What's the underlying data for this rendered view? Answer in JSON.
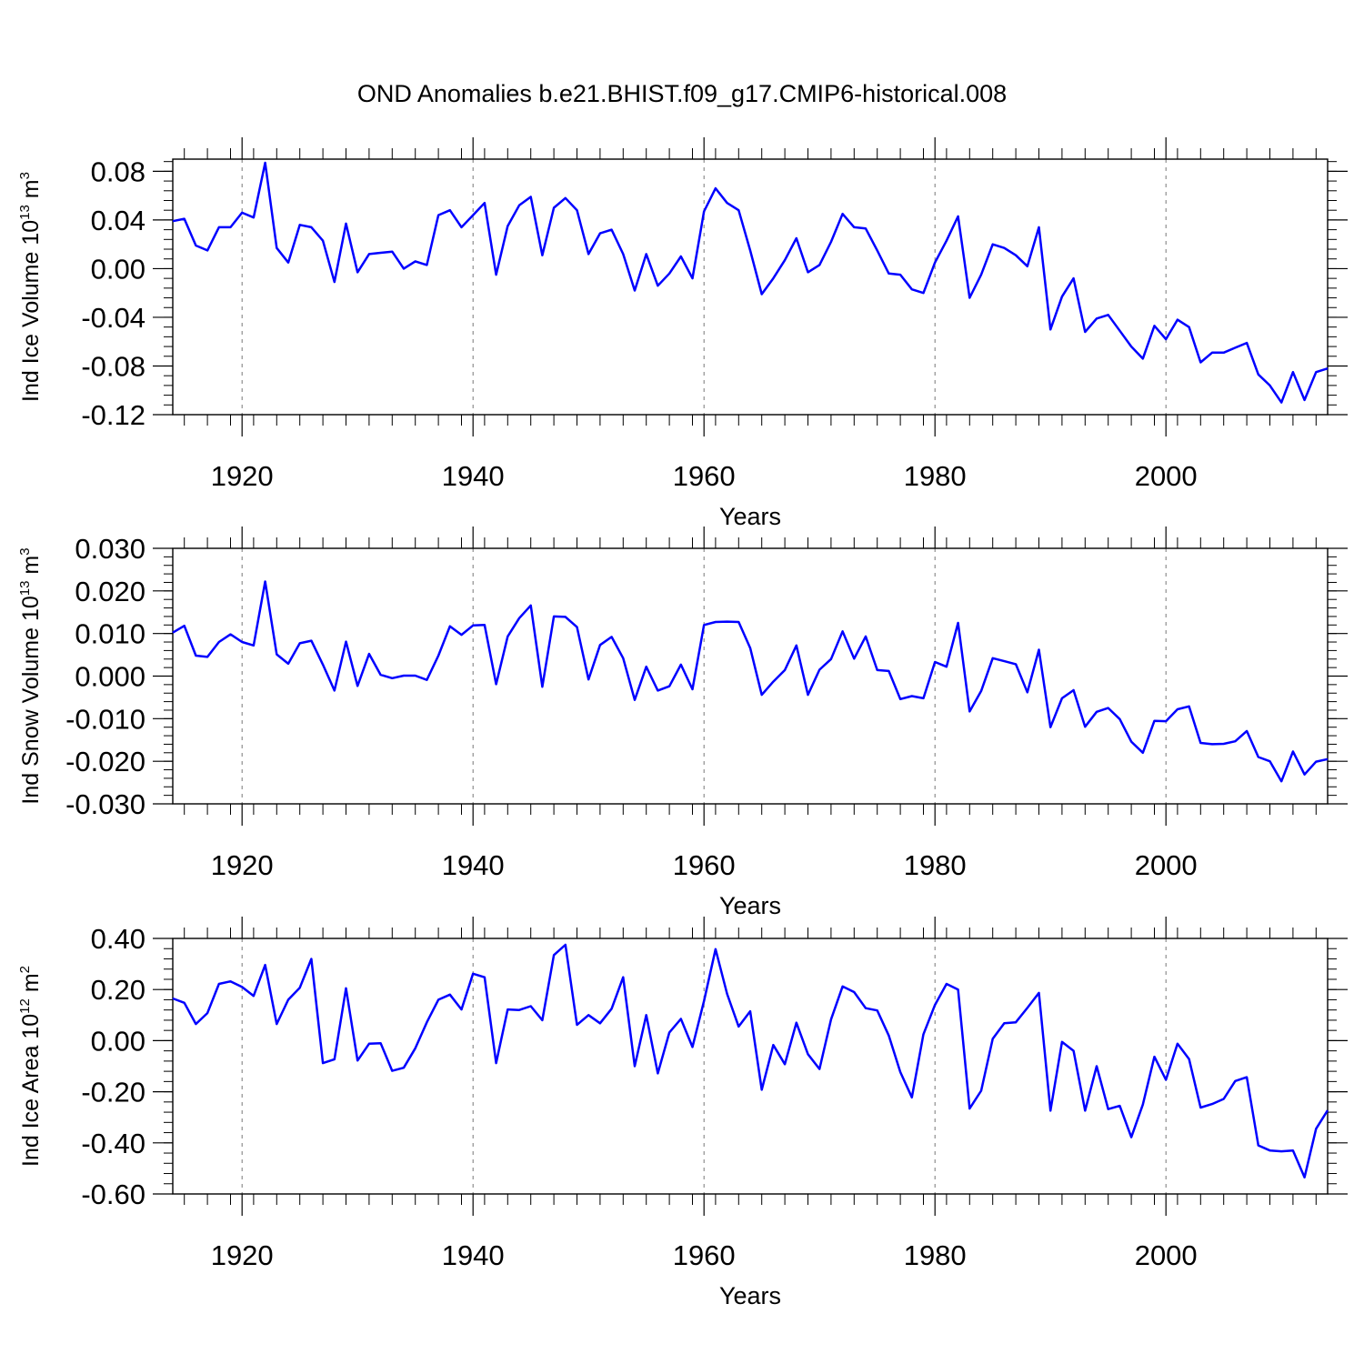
{
  "title": "OND Anomalies b.e21.BHIST.f09_g17.CMIP6-historical.008",
  "x_axis": {
    "label": "Years",
    "tick_labels": [
      "1920",
      "1940",
      "1960",
      "1980",
      "2000"
    ]
  },
  "colors": {
    "line": "#0000ff",
    "axes": "#000000",
    "grid": "#777777"
  },
  "chart_data": [
    {
      "type": "line",
      "ylabel": {
        "text": "Ind Ice Volume 10",
        "exp": "13",
        "unit": " m",
        "unit_exp": "3"
      },
      "xlim": [
        1914,
        2014
      ],
      "ylim": [
        -0.12,
        0.09
      ],
      "y_ticks": [
        0.08,
        0.04,
        0.0,
        -0.04,
        -0.08,
        -0.12
      ],
      "y_tick_labels": [
        "0.08",
        "0.04",
        "0.00",
        "-0.04",
        "-0.08",
        "-0.12"
      ],
      "x_ticks": [
        1920,
        1940,
        1960,
        1980,
        2000
      ],
      "grid": "vertical dashed at major x ticks",
      "x": [
        1914,
        1915,
        1916,
        1917,
        1918,
        1919,
        1920,
        1921,
        1922,
        1923,
        1924,
        1925,
        1926,
        1927,
        1928,
        1929,
        1930,
        1931,
        1932,
        1933,
        1934,
        1935,
        1936,
        1937,
        1938,
        1939,
        1940,
        1941,
        1942,
        1943,
        1944,
        1945,
        1946,
        1947,
        1948,
        1949,
        1950,
        1951,
        1952,
        1953,
        1954,
        1955,
        1956,
        1957,
        1958,
        1959,
        1960,
        1961,
        1962,
        1963,
        1964,
        1965,
        1966,
        1967,
        1968,
        1969,
        1970,
        1971,
        1972,
        1973,
        1974,
        1975,
        1976,
        1977,
        1978,
        1979,
        1980,
        1981,
        1982,
        1983,
        1984,
        1985,
        1986,
        1987,
        1988,
        1989,
        1990,
        1991,
        1992,
        1993,
        1994,
        1995,
        1996,
        1997,
        1998,
        1999,
        2000,
        2001,
        2002,
        2003,
        2004,
        2005,
        2006,
        2007,
        2008,
        2009,
        2010,
        2011,
        2012,
        2013,
        2014
      ],
      "values": [
        0.039,
        0.041,
        0.019,
        0.015,
        0.034,
        0.034,
        0.046,
        0.042,
        0.087,
        0.017,
        0.005,
        0.036,
        0.034,
        0.023,
        -0.011,
        0.037,
        -0.003,
        0.012,
        0.013,
        0.014,
        0.0,
        0.006,
        0.003,
        0.044,
        0.048,
        0.034,
        0.044,
        0.054,
        -0.005,
        0.035,
        0.052,
        0.059,
        0.011,
        0.05,
        0.058,
        0.048,
        0.012,
        0.029,
        0.032,
        0.012,
        -0.018,
        0.012,
        -0.014,
        -0.004,
        0.01,
        -0.008,
        0.047,
        0.066,
        0.054,
        0.048,
        0.015,
        -0.021,
        -0.008,
        0.007,
        0.025,
        -0.003,
        0.003,
        0.022,
        0.045,
        0.034,
        0.033,
        0.015,
        -0.004,
        -0.005,
        -0.017,
        -0.02,
        0.005,
        0.023,
        0.043,
        -0.024,
        -0.005,
        0.02,
        0.017,
        0.011,
        0.002,
        0.034,
        -0.05,
        -0.023,
        -0.008,
        -0.052,
        -0.041,
        -0.038,
        -0.051,
        -0.064,
        -0.074,
        -0.047,
        -0.058,
        -0.042,
        -0.048,
        -0.077,
        -0.069,
        -0.069,
        -0.065,
        -0.061,
        -0.087,
        -0.096,
        -0.11,
        -0.085,
        -0.108,
        -0.085,
        -0.082
      ]
    },
    {
      "type": "line",
      "ylabel": {
        "text": "Ind Snow Volume 10",
        "exp": "13",
        "unit": " m",
        "unit_exp": "3"
      },
      "xlim": [
        1914,
        2014
      ],
      "ylim": [
        -0.03,
        0.03
      ],
      "y_ticks": [
        0.03,
        0.02,
        0.01,
        0.0,
        -0.01,
        -0.02,
        -0.03
      ],
      "y_tick_labels": [
        "0.030",
        "0.020",
        "0.010",
        "0.000",
        "-0.010",
        "-0.020",
        "-0.030"
      ],
      "x_ticks": [
        1920,
        1940,
        1960,
        1980,
        2000
      ],
      "grid": "vertical dashed at major x ticks",
      "x": [
        1914,
        1915,
        1916,
        1917,
        1918,
        1919,
        1920,
        1921,
        1922,
        1923,
        1924,
        1925,
        1926,
        1927,
        1928,
        1929,
        1930,
        1931,
        1932,
        1933,
        1934,
        1935,
        1936,
        1937,
        1938,
        1939,
        1940,
        1941,
        1942,
        1943,
        1944,
        1945,
        1946,
        1947,
        1948,
        1949,
        1950,
        1951,
        1952,
        1953,
        1954,
        1955,
        1956,
        1957,
        1958,
        1959,
        1960,
        1961,
        1962,
        1963,
        1964,
        1965,
        1966,
        1967,
        1968,
        1969,
        1970,
        1971,
        1972,
        1973,
        1974,
        1975,
        1976,
        1977,
        1978,
        1979,
        1980,
        1981,
        1982,
        1983,
        1984,
        1985,
        1986,
        1987,
        1988,
        1989,
        1990,
        1991,
        1992,
        1993,
        1994,
        1995,
        1996,
        1997,
        1998,
        1999,
        2000,
        2001,
        2002,
        2003,
        2004,
        2005,
        2006,
        2007,
        2008,
        2009,
        2010,
        2011,
        2012,
        2013,
        2014
      ],
      "values": [
        0.0102,
        0.0118,
        0.0048,
        0.0045,
        0.008,
        0.0098,
        0.008,
        0.0072,
        0.0222,
        0.0051,
        0.0029,
        0.0077,
        0.0083,
        0.0027,
        -0.0034,
        0.0081,
        -0.0023,
        0.0052,
        0.0003,
        -0.0005,
        0.0001,
        0.0001,
        -0.0009,
        0.0048,
        0.0117,
        0.0097,
        0.0119,
        0.012,
        -0.0019,
        0.0093,
        0.0136,
        0.0166,
        -0.0025,
        0.014,
        0.0139,
        0.0115,
        -0.0008,
        0.0073,
        0.0092,
        0.0042,
        -0.0056,
        0.0022,
        -0.0034,
        -0.0024,
        0.0027,
        -0.0031,
        0.012,
        0.0127,
        0.0128,
        0.0127,
        0.0066,
        -0.0044,
        -0.0013,
        0.0014,
        0.0072,
        -0.0044,
        0.0015,
        0.004,
        0.0105,
        0.0041,
        0.0093,
        0.0014,
        0.0012,
        -0.0054,
        -0.0047,
        -0.0052,
        0.0033,
        0.0022,
        0.0125,
        -0.0083,
        -0.0035,
        0.0042,
        0.0035,
        0.0028,
        -0.0038,
        0.0062,
        -0.012,
        -0.0052,
        -0.0033,
        -0.0119,
        -0.0084,
        -0.0075,
        -0.0101,
        -0.0154,
        -0.018,
        -0.0105,
        -0.0106,
        -0.0078,
        -0.0071,
        -0.0157,
        -0.016,
        -0.0159,
        -0.0153,
        -0.0129,
        -0.019,
        -0.02,
        -0.0247,
        -0.0177,
        -0.0231,
        -0.0201,
        -0.0195
      ]
    },
    {
      "type": "line",
      "ylabel": {
        "text": "Ind Ice Area 10",
        "exp": "12",
        "unit": " m",
        "unit_exp": "2"
      },
      "xlim": [
        1914,
        2014
      ],
      "ylim": [
        -0.6,
        0.4
      ],
      "y_ticks": [
        0.4,
        0.2,
        0.0,
        -0.2,
        -0.4,
        -0.6
      ],
      "y_tick_labels": [
        "0.40",
        "0.20",
        "0.00",
        "-0.20",
        "-0.40",
        "-0.60"
      ],
      "x_ticks": [
        1920,
        1940,
        1960,
        1980,
        2000
      ],
      "grid": "vertical dashed at major x ticks",
      "x": [
        1914,
        1915,
        1916,
        1917,
        1918,
        1919,
        1920,
        1921,
        1922,
        1923,
        1924,
        1925,
        1926,
        1927,
        1928,
        1929,
        1930,
        1931,
        1932,
        1933,
        1934,
        1935,
        1936,
        1937,
        1938,
        1939,
        1940,
        1941,
        1942,
        1943,
        1944,
        1945,
        1946,
        1947,
        1948,
        1949,
        1950,
        1951,
        1952,
        1953,
        1954,
        1955,
        1956,
        1957,
        1958,
        1959,
        1960,
        1961,
        1962,
        1963,
        1964,
        1965,
        1966,
        1967,
        1968,
        1969,
        1970,
        1971,
        1972,
        1973,
        1974,
        1975,
        1976,
        1977,
        1978,
        1979,
        1980,
        1981,
        1982,
        1983,
        1984,
        1985,
        1986,
        1987,
        1988,
        1989,
        1990,
        1991,
        1992,
        1993,
        1994,
        1995,
        1996,
        1997,
        1998,
        1999,
        2000,
        2001,
        2002,
        2003,
        2004,
        2005,
        2006,
        2007,
        2008,
        2009,
        2010,
        2011,
        2012,
        2013,
        2014
      ],
      "values": [
        0.165,
        0.148,
        0.065,
        0.108,
        0.222,
        0.232,
        0.21,
        0.175,
        0.296,
        0.065,
        0.16,
        0.207,
        0.32,
        -0.088,
        -0.073,
        0.205,
        -0.078,
        -0.012,
        -0.01,
        -0.118,
        -0.106,
        -0.03,
        0.072,
        0.16,
        0.18,
        0.122,
        0.262,
        0.248,
        -0.088,
        0.122,
        0.12,
        0.135,
        0.08,
        0.335,
        0.375,
        0.062,
        0.1,
        0.068,
        0.125,
        0.248,
        -0.1,
        0.1,
        -0.128,
        0.032,
        0.085,
        -0.025,
        0.155,
        0.358,
        0.183,
        0.055,
        0.115,
        -0.192,
        -0.017,
        -0.092,
        0.07,
        -0.053,
        -0.111,
        0.083,
        0.212,
        0.19,
        0.127,
        0.118,
        0.02,
        -0.123,
        -0.222,
        0.025,
        0.14,
        0.222,
        0.2,
        -0.266,
        -0.196,
        0.007,
        0.068,
        0.072,
        0.128,
        0.187,
        -0.274,
        -0.005,
        -0.04,
        -0.274,
        -0.1,
        -0.268,
        -0.255,
        -0.378,
        -0.25,
        -0.063,
        -0.153,
        -0.012,
        -0.072,
        -0.262,
        -0.248,
        -0.228,
        -0.158,
        -0.143,
        -0.41,
        -0.43,
        -0.433,
        -0.43,
        -0.535,
        -0.345,
        -0.273
      ]
    }
  ]
}
